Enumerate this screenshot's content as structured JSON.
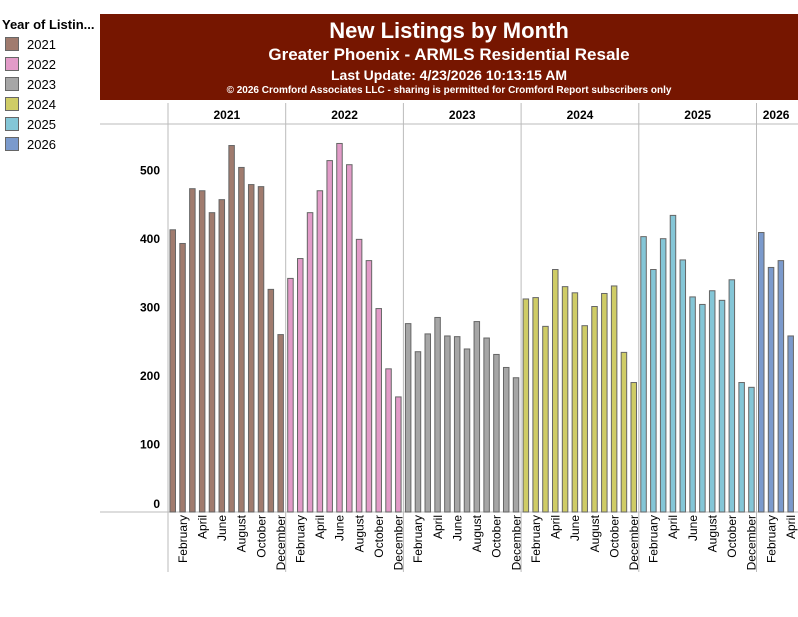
{
  "chart_data": {
    "type": "bar",
    "title": "New Listings by Month",
    "subtitle": "Greater Phoenix - ARMLS Residential Resale",
    "update": "Last Update: 4/23/2026 10:13:15 AM",
    "copyright": "© 2026 Cromford Associates LLC - sharing is permitted for Cromford Report subscribers only",
    "legend_title": "Year of Listin...",
    "legend_position": "left",
    "ylim": [
      0,
      560
    ],
    "yticks": [
      0,
      100,
      200,
      300,
      400,
      500
    ],
    "month_labels": [
      "",
      "February",
      "",
      "April",
      "",
      "June",
      "",
      "August",
      "",
      "October",
      "",
      "December"
    ],
    "series": [
      {
        "name": "2021",
        "color": "#a07b6e",
        "values": [
          412,
          392,
          472,
          469,
          437,
          456,
          535,
          503,
          478,
          475,
          325,
          259
        ]
      },
      {
        "name": "2022",
        "color": "#e29bc8",
        "values": [
          341,
          370,
          437,
          469,
          513,
          538,
          507,
          398,
          367,
          297,
          209,
          168
        ]
      },
      {
        "name": "2023",
        "color": "#a6a6a6",
        "values": [
          275,
          234,
          260,
          284,
          257,
          256,
          238,
          278,
          254,
          230,
          211,
          196
        ]
      },
      {
        "name": "2024",
        "color": "#cfcc66",
        "values": [
          311,
          313,
          271,
          354,
          329,
          320,
          272,
          300,
          319,
          330,
          233,
          189
        ]
      },
      {
        "name": "2025",
        "color": "#84c6d7",
        "values": [
          402,
          354,
          399,
          433,
          368,
          314,
          303,
          323,
          309,
          339,
          189,
          182
        ]
      },
      {
        "name": "2026",
        "color": "#7b9acc",
        "values": [
          408,
          357,
          367,
          257
        ]
      }
    ]
  }
}
